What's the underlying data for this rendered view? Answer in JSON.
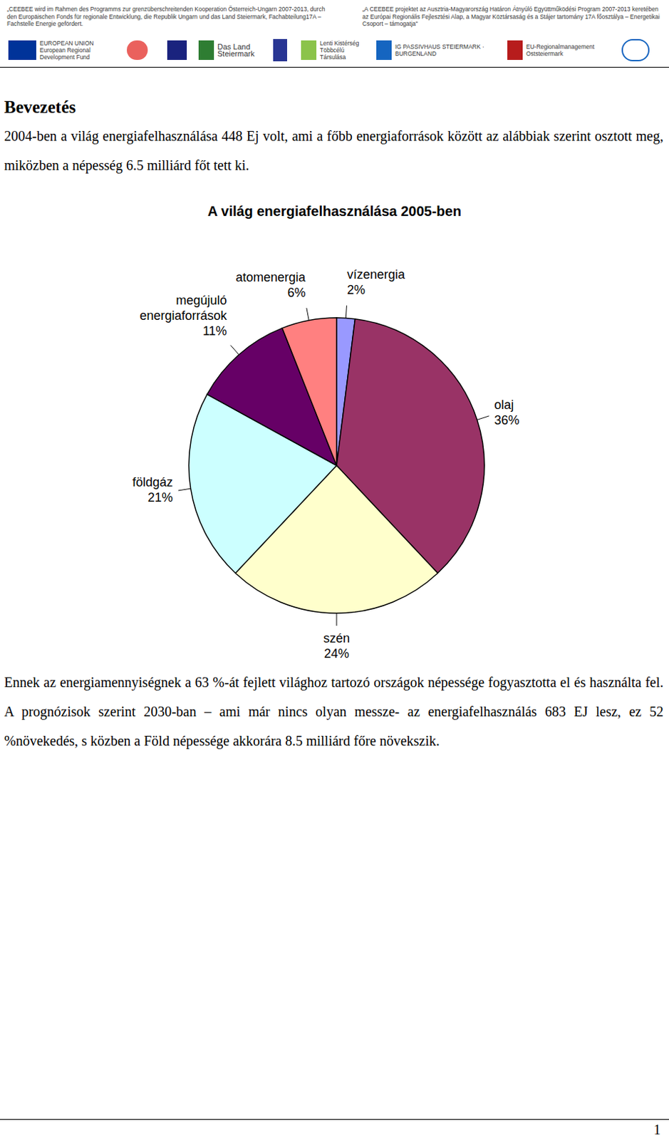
{
  "header": {
    "left_text": "„CEEBEE wird im Rahmen des Programms zur grenzüberschreitenden Kooperation Österreich-Ungarn 2007-2013, durch den Europäischen Fonds für regionale Entwicklung, die Republik Ungarn und das Land Steiermark, Fachabteilung17A – Fachstelle Energie gefördert.",
    "right_text": "„A CEEBEE projektet az Ausztria-Magyarország Határon Átnyúló Együttműködési Program 2007-2013 keretében az Európai Regionális Fejlesztési Alap, a Magyar Köztársaság és a Stájer tartomány 17A főosztálya – Energetikai Csoport – támogatja\"",
    "logos": [
      "EUROPEAN UNION European Regional Development Fund",
      "Das Land Steiermark",
      "Lenti Kistérség Többcélú Társulása",
      "IG PASSIVHAUS STEIERMARK · BURGENLAND",
      "EU-Regionalmanagement Oststeiermark"
    ]
  },
  "heading": "Bevezetés",
  "paragraphs": [
    "2004-ben a világ energiafelhasználása 448 Ej volt, ami a főbb energiaforrások között az alábbiak szerint osztott meg, miközben a népesség 6.5 milliárd főt tett ki.",
    "Ennek az energiamennyiségnek a 63 %-át fejlett világhoz tartozó országok népessége fogyasztotta el és használta fel. A prognózisok szerint 2030-ban – ami már nincs olyan messze- az energiafelhasználás 683 EJ lesz, ez 52 %növekedés, s közben a Föld népessége akkorára 8.5 milliárd főre növekszik."
  ],
  "chart_data": {
    "type": "pie",
    "title": "A világ energiafelhasználása 2005-ben",
    "categories": [
      "vízenergia",
      "olaj",
      "szén",
      "földgáz",
      "megújuló energiaforrások",
      "atomenergia"
    ],
    "values": [
      2,
      36,
      24,
      21,
      11,
      6
    ],
    "value_labels": [
      "2%",
      "36%",
      "24%",
      "21%",
      "11%",
      "6%"
    ],
    "colors": [
      "#9999ff",
      "#993366",
      "#ffffcc",
      "#ccffff",
      "#660066",
      "#ff8080"
    ],
    "data_labels": true
  },
  "page_number": 1
}
